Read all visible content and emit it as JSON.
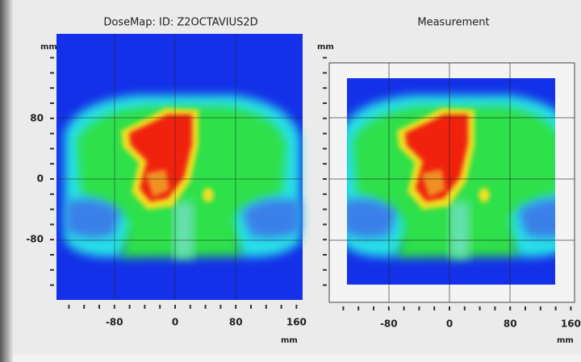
{
  "panels": [
    {
      "title": "DoseMap: ID: Z2OCTAVIUS2D",
      "y_unit": "mm",
      "x_unit": "mm",
      "xticks": [
        -80,
        0,
        80,
        160
      ],
      "yticks": [
        80,
        0,
        -80
      ]
    },
    {
      "title": "Measurement",
      "y_unit": "mm",
      "x_unit": "mm",
      "xticks": [
        -80,
        0,
        80,
        160
      ]
    }
  ]
}
